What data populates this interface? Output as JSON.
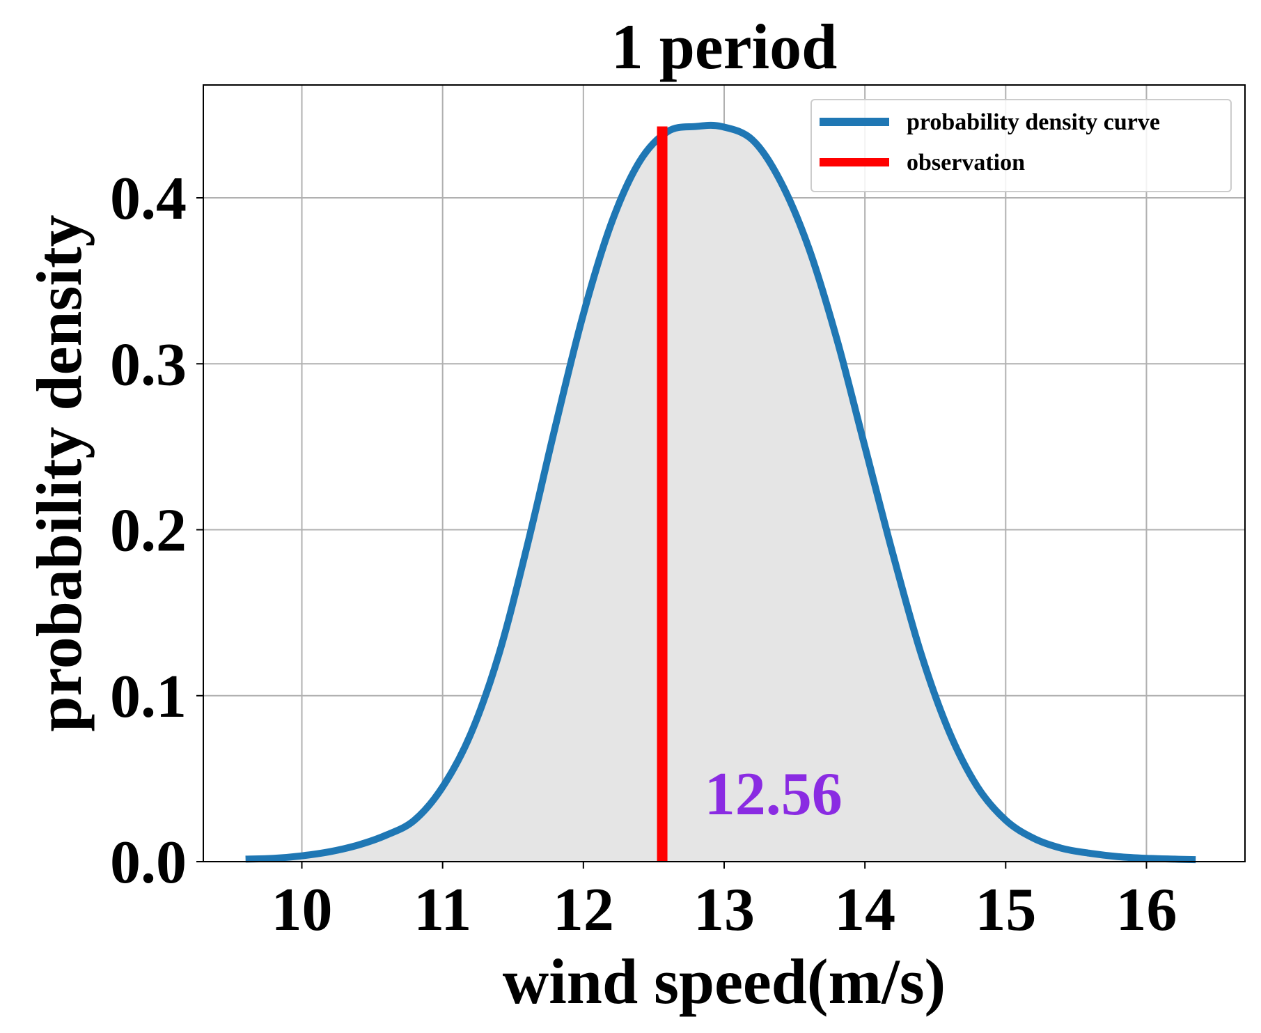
{
  "chart_data": {
    "type": "line",
    "title": "1 period",
    "xlabel": "wind speed(m/s)",
    "ylabel": "probability density",
    "xlim": [
      9.3,
      16.7
    ],
    "ylim": [
      0.0,
      0.468
    ],
    "xticks": [
      10,
      11,
      12,
      13,
      14,
      15,
      16
    ],
    "yticks": [
      0.0,
      0.1,
      0.2,
      0.3,
      0.4
    ],
    "xtick_labels": [
      "10",
      "11",
      "12",
      "13",
      "14",
      "15",
      "16"
    ],
    "ytick_labels": [
      "0.0",
      "0.1",
      "0.2",
      "0.3",
      "0.4"
    ],
    "grid": true,
    "legend": {
      "placement": "top-right"
    },
    "series": [
      {
        "name": "probability density curve",
        "color": "#1f77b4",
        "fill_color": "#e5e5e5",
        "x": [
          9.6,
          9.8,
          10.0,
          10.2,
          10.4,
          10.6,
          10.8,
          11.0,
          11.2,
          11.4,
          11.6,
          11.8,
          12.0,
          12.2,
          12.4,
          12.6,
          12.8,
          12.98,
          13.2,
          13.4,
          13.6,
          13.8,
          14.0,
          14.2,
          14.4,
          14.6,
          14.8,
          15.0,
          15.2,
          15.4,
          15.6,
          15.8,
          16.0,
          16.2,
          16.35
        ],
        "y": [
          0.0015,
          0.002,
          0.0035,
          0.006,
          0.01,
          0.016,
          0.025,
          0.045,
          0.077,
          0.125,
          0.19,
          0.262,
          0.33,
          0.385,
          0.422,
          0.44,
          0.443,
          0.443,
          0.435,
          0.41,
          0.37,
          0.315,
          0.25,
          0.185,
          0.125,
          0.078,
          0.045,
          0.025,
          0.014,
          0.008,
          0.005,
          0.003,
          0.002,
          0.0015,
          0.0012
        ]
      },
      {
        "name": "observation",
        "color": "#ff0000",
        "x": [
          12.56,
          12.56
        ],
        "y": [
          0.0,
          0.443
        ]
      }
    ],
    "annotations": [
      {
        "text": "12.56",
        "x": 13.35,
        "y": 0.0285,
        "color": "#8a2be2"
      }
    ]
  }
}
